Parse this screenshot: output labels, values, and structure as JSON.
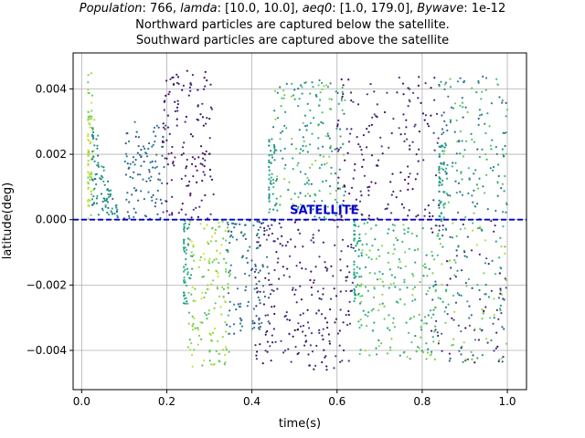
{
  "chart_data": {
    "type": "scatter",
    "title": {
      "line1": {
        "population_key": "Population",
        "population_value": "766",
        "lamda_key": "lamda",
        "lamda_value": "[10.0, 10.0]",
        "aeq0_key": "aeq0",
        "aeq0_value": "[1.0, 179.0]",
        "bywave_key": "Bywave",
        "bywave_value": "1e-12"
      },
      "line2": "Northward particles are captured below the satellite.",
      "line3": "Southward particles are captured above the satellite"
    },
    "xlabel": "time(s)",
    "ylabel": "latitude(deg)",
    "xlim": [
      -0.02,
      1.045
    ],
    "ylim": [
      -0.0052,
      0.0051
    ],
    "x_ticks": [
      0.0,
      0.2,
      0.4,
      0.6,
      0.8,
      1.0
    ],
    "x_tick_labels": [
      "0.0",
      "0.2",
      "0.4",
      "0.6",
      "0.8",
      "1.0"
    ],
    "y_ticks": [
      -0.004,
      -0.002,
      0.0,
      0.002,
      0.004
    ],
    "y_tick_labels": [
      "−0.004",
      "−0.002",
      "0.000",
      "0.002",
      "0.004"
    ],
    "grid": true,
    "satellite_line": {
      "y": 0.0,
      "label": "SATELLITE",
      "color": "#0000cc",
      "style": "dashed"
    },
    "colormap": "viridis",
    "clusters": [
      {
        "x_range": [
          0.015,
          0.03
        ],
        "y_range": [
          0.0,
          0.0045
        ],
        "color_range": [
          0.75,
          0.95
        ],
        "count": 70,
        "shape": "left-dense"
      },
      {
        "x_range": [
          0.025,
          0.085
        ],
        "y_range": [
          0.0,
          0.0028
        ],
        "color_range": [
          0.35,
          0.65
        ],
        "count": 90,
        "shape": "decay"
      },
      {
        "x_range": [
          0.1,
          0.2
        ],
        "y_range": [
          0.0,
          0.003
        ],
        "color_range": [
          0.25,
          0.45
        ],
        "count": 110,
        "shape": "uniform"
      },
      {
        "x_range": [
          0.19,
          0.31
        ],
        "y_range": [
          0.0,
          0.0046
        ],
        "color_range": [
          0.0,
          0.15
        ],
        "count": 140,
        "shape": "uniform"
      },
      {
        "x_range": [
          0.24,
          0.26
        ],
        "y_range": [
          -0.0026,
          0.0
        ],
        "color_range": [
          0.5,
          0.7
        ],
        "count": 60,
        "shape": "left-dense"
      },
      {
        "x_range": [
          0.25,
          0.35
        ],
        "y_range": [
          -0.0045,
          0.0
        ],
        "color_range": [
          0.7,
          0.95
        ],
        "count": 150,
        "shape": "uniform"
      },
      {
        "x_range": [
          0.34,
          0.44
        ],
        "y_range": [
          -0.0035,
          0.0
        ],
        "color_range": [
          0.25,
          0.5
        ],
        "count": 110,
        "shape": "uniform"
      },
      {
        "x_range": [
          0.44,
          0.46
        ],
        "y_range": [
          0.0,
          0.0025
        ],
        "color_range": [
          0.45,
          0.65
        ],
        "count": 50,
        "shape": "left-dense"
      },
      {
        "x_range": [
          0.45,
          0.62
        ],
        "y_range": [
          0.0,
          0.0043
        ],
        "color_range": [
          0.4,
          0.85
        ],
        "count": 200,
        "shape": "uniform"
      },
      {
        "x_range": [
          0.4,
          0.64
        ],
        "y_range": [
          -0.0046,
          0.0
        ],
        "color_range": [
          0.0,
          0.2
        ],
        "count": 230,
        "shape": "uniform"
      },
      {
        "x_range": [
          0.6,
          0.84
        ],
        "y_range": [
          0.0,
          0.0044
        ],
        "color_range": [
          0.0,
          0.2
        ],
        "count": 170,
        "shape": "uniform"
      },
      {
        "x_range": [
          0.64,
          0.66
        ],
        "y_range": [
          -0.0025,
          0.0
        ],
        "color_range": [
          0.5,
          0.7
        ],
        "count": 55,
        "shape": "left-dense"
      },
      {
        "x_range": [
          0.65,
          0.84
        ],
        "y_range": [
          -0.0043,
          0.0
        ],
        "color_range": [
          0.5,
          0.85
        ],
        "count": 200,
        "shape": "uniform"
      },
      {
        "x_range": [
          0.84,
          0.86
        ],
        "y_range": [
          0.0,
          0.0025
        ],
        "color_range": [
          0.45,
          0.65
        ],
        "count": 45,
        "shape": "left-dense"
      },
      {
        "x_range": [
          0.84,
          1.0
        ],
        "y_range": [
          0.0,
          0.0044
        ],
        "color_range": [
          0.3,
          0.8
        ],
        "count": 170,
        "shape": "uniform"
      },
      {
        "x_range": [
          0.82,
          1.0
        ],
        "y_range": [
          -0.0044,
          0.0
        ],
        "color_range": [
          0.0,
          0.9
        ],
        "count": 200,
        "shape": "uniform"
      }
    ]
  }
}
